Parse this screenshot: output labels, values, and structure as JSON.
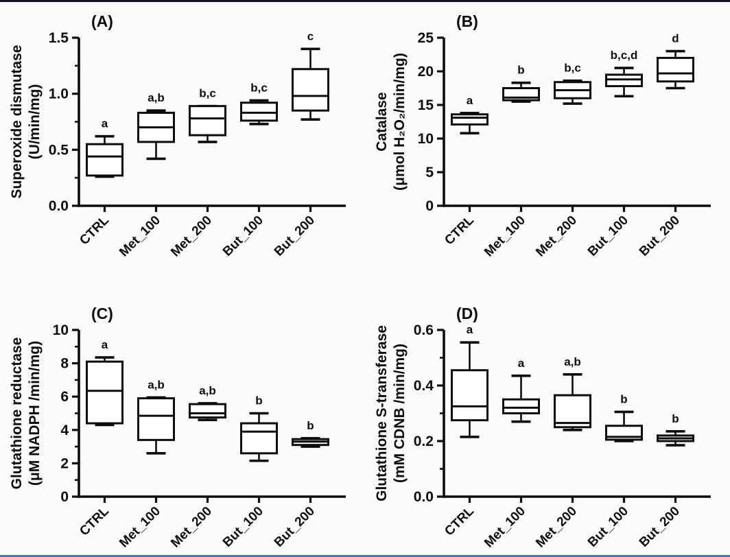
{
  "style": {
    "ink_color": "#0c0c0c",
    "background_color": "#fafbfc",
    "top_border_color": "#14141e",
    "bottom_border_color": "#4a74cc",
    "box_fill": "#ffffff"
  },
  "chart_data": [
    {
      "type": "box",
      "panel_label": "(A)",
      "ylabel_lines": [
        "Superoxide dismutase",
        "(U/min/mg)"
      ],
      "ylim": [
        0,
        1.5
      ],
      "major_ticks": [
        0,
        0.5,
        1.0,
        1.5
      ],
      "tick_labels": [
        "0.0",
        "0.5",
        "1.0",
        "1.5"
      ],
      "minor_step": 0.25,
      "categories": [
        "CTRL",
        "Met_100",
        "Met_200",
        "But_100",
        "But_200"
      ],
      "sig_labels": [
        "a",
        "a,b",
        "b,c",
        "b,c",
        "c"
      ],
      "boxes": [
        {
          "min": 0.26,
          "q1": 0.27,
          "median": 0.44,
          "q3": 0.55,
          "max": 0.62
        },
        {
          "min": 0.42,
          "q1": 0.57,
          "median": 0.7,
          "q3": 0.83,
          "max": 0.85
        },
        {
          "min": 0.57,
          "q1": 0.63,
          "median": 0.78,
          "q3": 0.89,
          "max": 0.89
        },
        {
          "min": 0.73,
          "q1": 0.76,
          "median": 0.83,
          "q3": 0.92,
          "max": 0.94
        },
        {
          "min": 0.77,
          "q1": 0.85,
          "median": 0.98,
          "q3": 1.22,
          "max": 1.4
        }
      ]
    },
    {
      "type": "box",
      "panel_label": "(B)",
      "ylabel_lines": [
        "Catalase",
        "(μmol H₂O₂/min/mg)"
      ],
      "ylim": [
        0,
        25
      ],
      "major_ticks": [
        0,
        5,
        10,
        15,
        20,
        25
      ],
      "tick_labels": [
        "0",
        "5",
        "10",
        "15",
        "20",
        "25"
      ],
      "minor_step": null,
      "categories": [
        "CTRL",
        "Met_100",
        "Met_200",
        "But_100",
        "But_200"
      ],
      "sig_labels": [
        "a",
        "b",
        "b,c",
        "b,c,d",
        "d"
      ],
      "boxes": [
        {
          "min": 10.8,
          "q1": 12.1,
          "median": 13.1,
          "q3": 13.6,
          "max": 13.8
        },
        {
          "min": 15.5,
          "q1": 15.7,
          "median": 16.1,
          "q3": 17.5,
          "max": 18.3
        },
        {
          "min": 15.2,
          "q1": 16.0,
          "median": 17.2,
          "q3": 18.4,
          "max": 18.6
        },
        {
          "min": 16.3,
          "q1": 17.8,
          "median": 18.8,
          "q3": 19.5,
          "max": 20.5
        },
        {
          "min": 17.5,
          "q1": 18.5,
          "median": 19.7,
          "q3": 22.0,
          "max": 23.0
        }
      ]
    },
    {
      "type": "box",
      "panel_label": "(C)",
      "ylabel_lines": [
        "Glutathione reductase",
        "(μM NADPH /min/mg)"
      ],
      "ylim": [
        0,
        10
      ],
      "major_ticks": [
        0,
        2,
        4,
        6,
        8,
        10
      ],
      "tick_labels": [
        "0",
        "2",
        "4",
        "6",
        "8",
        "10"
      ],
      "minor_step": 1,
      "categories": [
        "CTRL",
        "Met_100",
        "Met_200",
        "But_100",
        "But_200"
      ],
      "sig_labels": [
        "a",
        "a,b",
        "a,b",
        "b",
        "b"
      ],
      "boxes": [
        {
          "min": 4.3,
          "q1": 4.4,
          "median": 6.35,
          "q3": 8.1,
          "max": 8.35
        },
        {
          "min": 2.6,
          "q1": 3.4,
          "median": 4.85,
          "q3": 5.9,
          "max": 5.95
        },
        {
          "min": 4.6,
          "q1": 4.75,
          "median": 5.0,
          "q3": 5.55,
          "max": 5.6
        },
        {
          "min": 2.15,
          "q1": 2.6,
          "median": 3.9,
          "q3": 4.4,
          "max": 5.0
        },
        {
          "min": 3.0,
          "q1": 3.1,
          "median": 3.3,
          "q3": 3.45,
          "max": 3.5
        }
      ]
    },
    {
      "type": "box",
      "panel_label": "(D)",
      "ylabel_lines": [
        "Glutathione S-transferase",
        "(mM CDNB /min/mg)"
      ],
      "ylim": [
        0,
        0.6
      ],
      "major_ticks": [
        0,
        0.2,
        0.4,
        0.6
      ],
      "tick_labels": [
        "0.0",
        "0.2",
        "0.4",
        "0.6"
      ],
      "minor_step": 0.1,
      "categories": [
        "CTRL",
        "Met_100",
        "Met_200",
        "But_100",
        "But_200"
      ],
      "sig_labels": [
        "a",
        "a",
        "a,b",
        "b",
        "b"
      ],
      "boxes": [
        {
          "min": 0.215,
          "q1": 0.275,
          "median": 0.325,
          "q3": 0.455,
          "max": 0.555
        },
        {
          "min": 0.27,
          "q1": 0.3,
          "median": 0.32,
          "q3": 0.35,
          "max": 0.435
        },
        {
          "min": 0.24,
          "q1": 0.25,
          "median": 0.265,
          "q3": 0.365,
          "max": 0.44
        },
        {
          "min": 0.2,
          "q1": 0.205,
          "median": 0.215,
          "q3": 0.255,
          "max": 0.305
        },
        {
          "min": 0.185,
          "q1": 0.2,
          "median": 0.21,
          "q3": 0.22,
          "max": 0.235
        }
      ]
    }
  ]
}
